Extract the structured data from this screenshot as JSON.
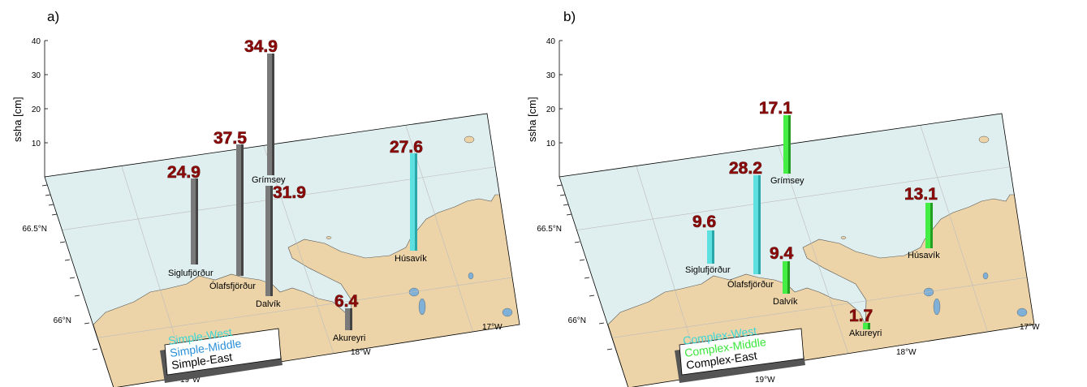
{
  "panels": [
    {
      "label": "a)",
      "ylabel": "ssha [cm]",
      "yticks": [
        "40",
        "30",
        "20",
        "10"
      ],
      "lat_labels": [
        "66.5°N",
        "66°N"
      ],
      "lon_labels": [
        "19°W",
        "18°W",
        "17°W"
      ],
      "places": [
        "Siglufjörður",
        "Ólafsfjörður",
        "Grímsey",
        "Dalvík",
        "Húsavík",
        "Akureyri"
      ],
      "legend": [
        {
          "text": "Simple-West",
          "color": "#3dd6d6"
        },
        {
          "text": "Simple-Middle",
          "color": "#2a8fd8"
        },
        {
          "text": "Simple-East",
          "color": "#000000"
        }
      ],
      "bars": [
        {
          "value": "24.9",
          "color": "#7a7a7a",
          "label": "24.9"
        },
        {
          "value": "37.5",
          "color": "#7a7a7a",
          "label": "37.5"
        },
        {
          "value": "34.9",
          "color": "#7a7a7a",
          "label": "34.9"
        },
        {
          "value": "31.9",
          "color": "#7a7a7a",
          "label": "31.9"
        },
        {
          "value": "27.6",
          "color": "#5fe0e0",
          "label": "27.6"
        },
        {
          "value": "6.4",
          "color": "#7a7a7a",
          "label": "6.4"
        }
      ]
    },
    {
      "label": "b)",
      "ylabel": "ssha [cm]",
      "yticks": [
        "40",
        "30",
        "20",
        "10"
      ],
      "lat_labels": [
        "66.5°N",
        "66°N"
      ],
      "lon_labels": [
        "19°W",
        "18°W",
        "17°W"
      ],
      "places": [
        "Siglufjörður",
        "Ólafsfjörður",
        "Grímsey",
        "Dalvík",
        "Húsavík",
        "Akureyri"
      ],
      "legend": [
        {
          "text": "Complex-West",
          "color": "#3dd6d6"
        },
        {
          "text": "Complex-Middle",
          "color": "#39e639"
        },
        {
          "text": "Complex-East",
          "color": "#000000"
        }
      ],
      "bars": [
        {
          "value": "9.6",
          "color": "#5fe0e0",
          "label": "9.6"
        },
        {
          "value": "28.2",
          "color": "#5fe0e0",
          "label": "28.2"
        },
        {
          "value": "17.1",
          "color": "#44ee44",
          "label": "17.1"
        },
        {
          "value": "9.4",
          "color": "#44ee44",
          "label": "9.4"
        },
        {
          "value": "13.1",
          "color": "#44ee44",
          "label": "13.1"
        },
        {
          "value": "1.7",
          "color": "#44ee44",
          "label": "1.7"
        }
      ]
    }
  ],
  "colors": {
    "sea": "#dfeeee",
    "land": "#ecd4a8",
    "lake": "#7fb0d8",
    "grid": "#bcbcbc"
  }
}
